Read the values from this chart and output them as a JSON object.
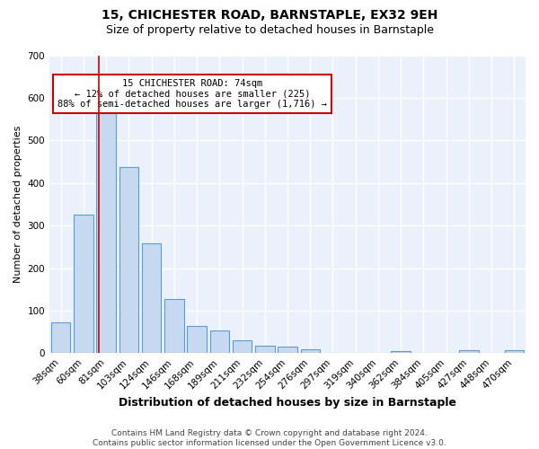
{
  "title1": "15, CHICHESTER ROAD, BARNSTAPLE, EX32 9EH",
  "title2": "Size of property relative to detached houses in Barnstaple",
  "xlabel": "Distribution of detached houses by size in Barnstaple",
  "ylabel": "Number of detached properties",
  "categories": [
    "38sqm",
    "60sqm",
    "81sqm",
    "103sqm",
    "124sqm",
    "146sqm",
    "168sqm",
    "189sqm",
    "211sqm",
    "232sqm",
    "254sqm",
    "276sqm",
    "297sqm",
    "319sqm",
    "340sqm",
    "362sqm",
    "384sqm",
    "405sqm",
    "427sqm",
    "448sqm",
    "470sqm"
  ],
  "values": [
    72,
    325,
    565,
    437,
    258,
    128,
    65,
    53,
    30,
    17,
    15,
    10,
    0,
    0,
    0,
    5,
    0,
    0,
    8,
    0,
    6
  ],
  "bar_color": "#c6d9f1",
  "bar_edge_color": "#5b9bd5",
  "property_line_x": 1.68,
  "property_line_color": "#cc0000",
  "annotation_text": "15 CHICHESTER ROAD: 74sqm\n← 12% of detached houses are smaller (225)\n88% of semi-detached houses are larger (1,716) →",
  "annotation_box_color": "#ffffff",
  "annotation_box_edge": "#cc0000",
  "ylim": [
    0,
    700
  ],
  "yticks": [
    0,
    100,
    200,
    300,
    400,
    500,
    600,
    700
  ],
  "bg_color": "#eaf1fb",
  "grid_color": "#ffffff",
  "footer": "Contains HM Land Registry data © Crown copyright and database right 2024.\nContains public sector information licensed under the Open Government Licence v3.0.",
  "title1_fontsize": 10,
  "title2_fontsize": 9,
  "xlabel_fontsize": 9,
  "ylabel_fontsize": 8,
  "tick_fontsize": 7.5,
  "annotation_fontsize": 7.5,
  "footer_fontsize": 6.5
}
